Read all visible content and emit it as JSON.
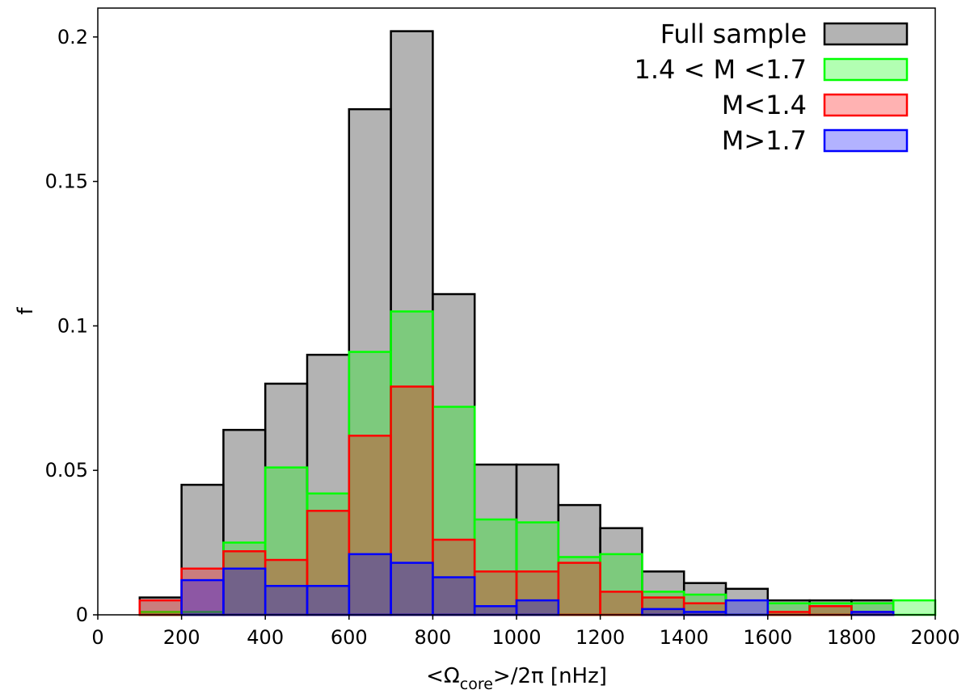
{
  "chart_data": {
    "type": "bar",
    "xlabel_main": "<Ω",
    "xlabel_sub": "core",
    "xlabel_rest": ">/2π [nHz]",
    "ylabel": "f",
    "xlim": [
      0,
      2000
    ],
    "ylim": [
      0,
      0.21
    ],
    "x_ticks": [
      0,
      200,
      400,
      600,
      800,
      1000,
      1200,
      1400,
      1600,
      1800,
      2000
    ],
    "x_tick_labels": [
      "0",
      "200",
      "400",
      "600",
      "800",
      "1000",
      "1200",
      "1400",
      "1600",
      "1800",
      "2000"
    ],
    "y_ticks": [
      0,
      0.05,
      0.1,
      0.15,
      0.2
    ],
    "y_tick_labels": [
      "0",
      "0.05",
      "0.1",
      "0.15",
      "0.2"
    ],
    "bin_edges": [
      100,
      200,
      300,
      400,
      500,
      600,
      700,
      800,
      900,
      1000,
      1100,
      1200,
      1300,
      1400,
      1500,
      1600,
      1700,
      1800,
      1900,
      2000
    ],
    "legend_position": "top-right",
    "series": [
      {
        "name": "Full sample",
        "edge": "#000000",
        "fill": "#808080",
        "fill_opacity": 0.6,
        "values": [
          0.006,
          0.045,
          0.064,
          0.08,
          0.09,
          0.175,
          0.202,
          0.111,
          0.052,
          0.052,
          0.038,
          0.03,
          0.015,
          0.011,
          0.009,
          0.005,
          0.005,
          0.005,
          0.0
        ]
      },
      {
        "name": "1.4 < M <1.7",
        "edge": "#00ff00",
        "fill": "#00ff00",
        "fill_opacity": 0.3,
        "values": [
          0.001,
          0.001,
          0.025,
          0.051,
          0.042,
          0.091,
          0.105,
          0.072,
          0.033,
          0.032,
          0.02,
          0.021,
          0.008,
          0.007,
          0.0,
          0.004,
          0.004,
          0.004,
          0.005
        ]
      },
      {
        "name": "M<1.4",
        "edge": "#ff0000",
        "fill": "#ff0000",
        "fill_opacity": 0.3,
        "values": [
          0.005,
          0.016,
          0.022,
          0.019,
          0.036,
          0.062,
          0.079,
          0.026,
          0.015,
          0.015,
          0.018,
          0.008,
          0.006,
          0.004,
          0.0,
          0.001,
          0.003,
          0.001,
          0.0
        ]
      },
      {
        "name": "M>1.7",
        "edge": "#0000ff",
        "fill": "#0000ff",
        "fill_opacity": 0.3,
        "values": [
          0.0,
          0.012,
          0.016,
          0.01,
          0.01,
          0.021,
          0.018,
          0.013,
          0.003,
          0.005,
          0.0,
          0.0,
          0.002,
          0.001,
          0.005,
          0.0,
          0.0,
          0.001,
          0.0
        ]
      }
    ]
  }
}
